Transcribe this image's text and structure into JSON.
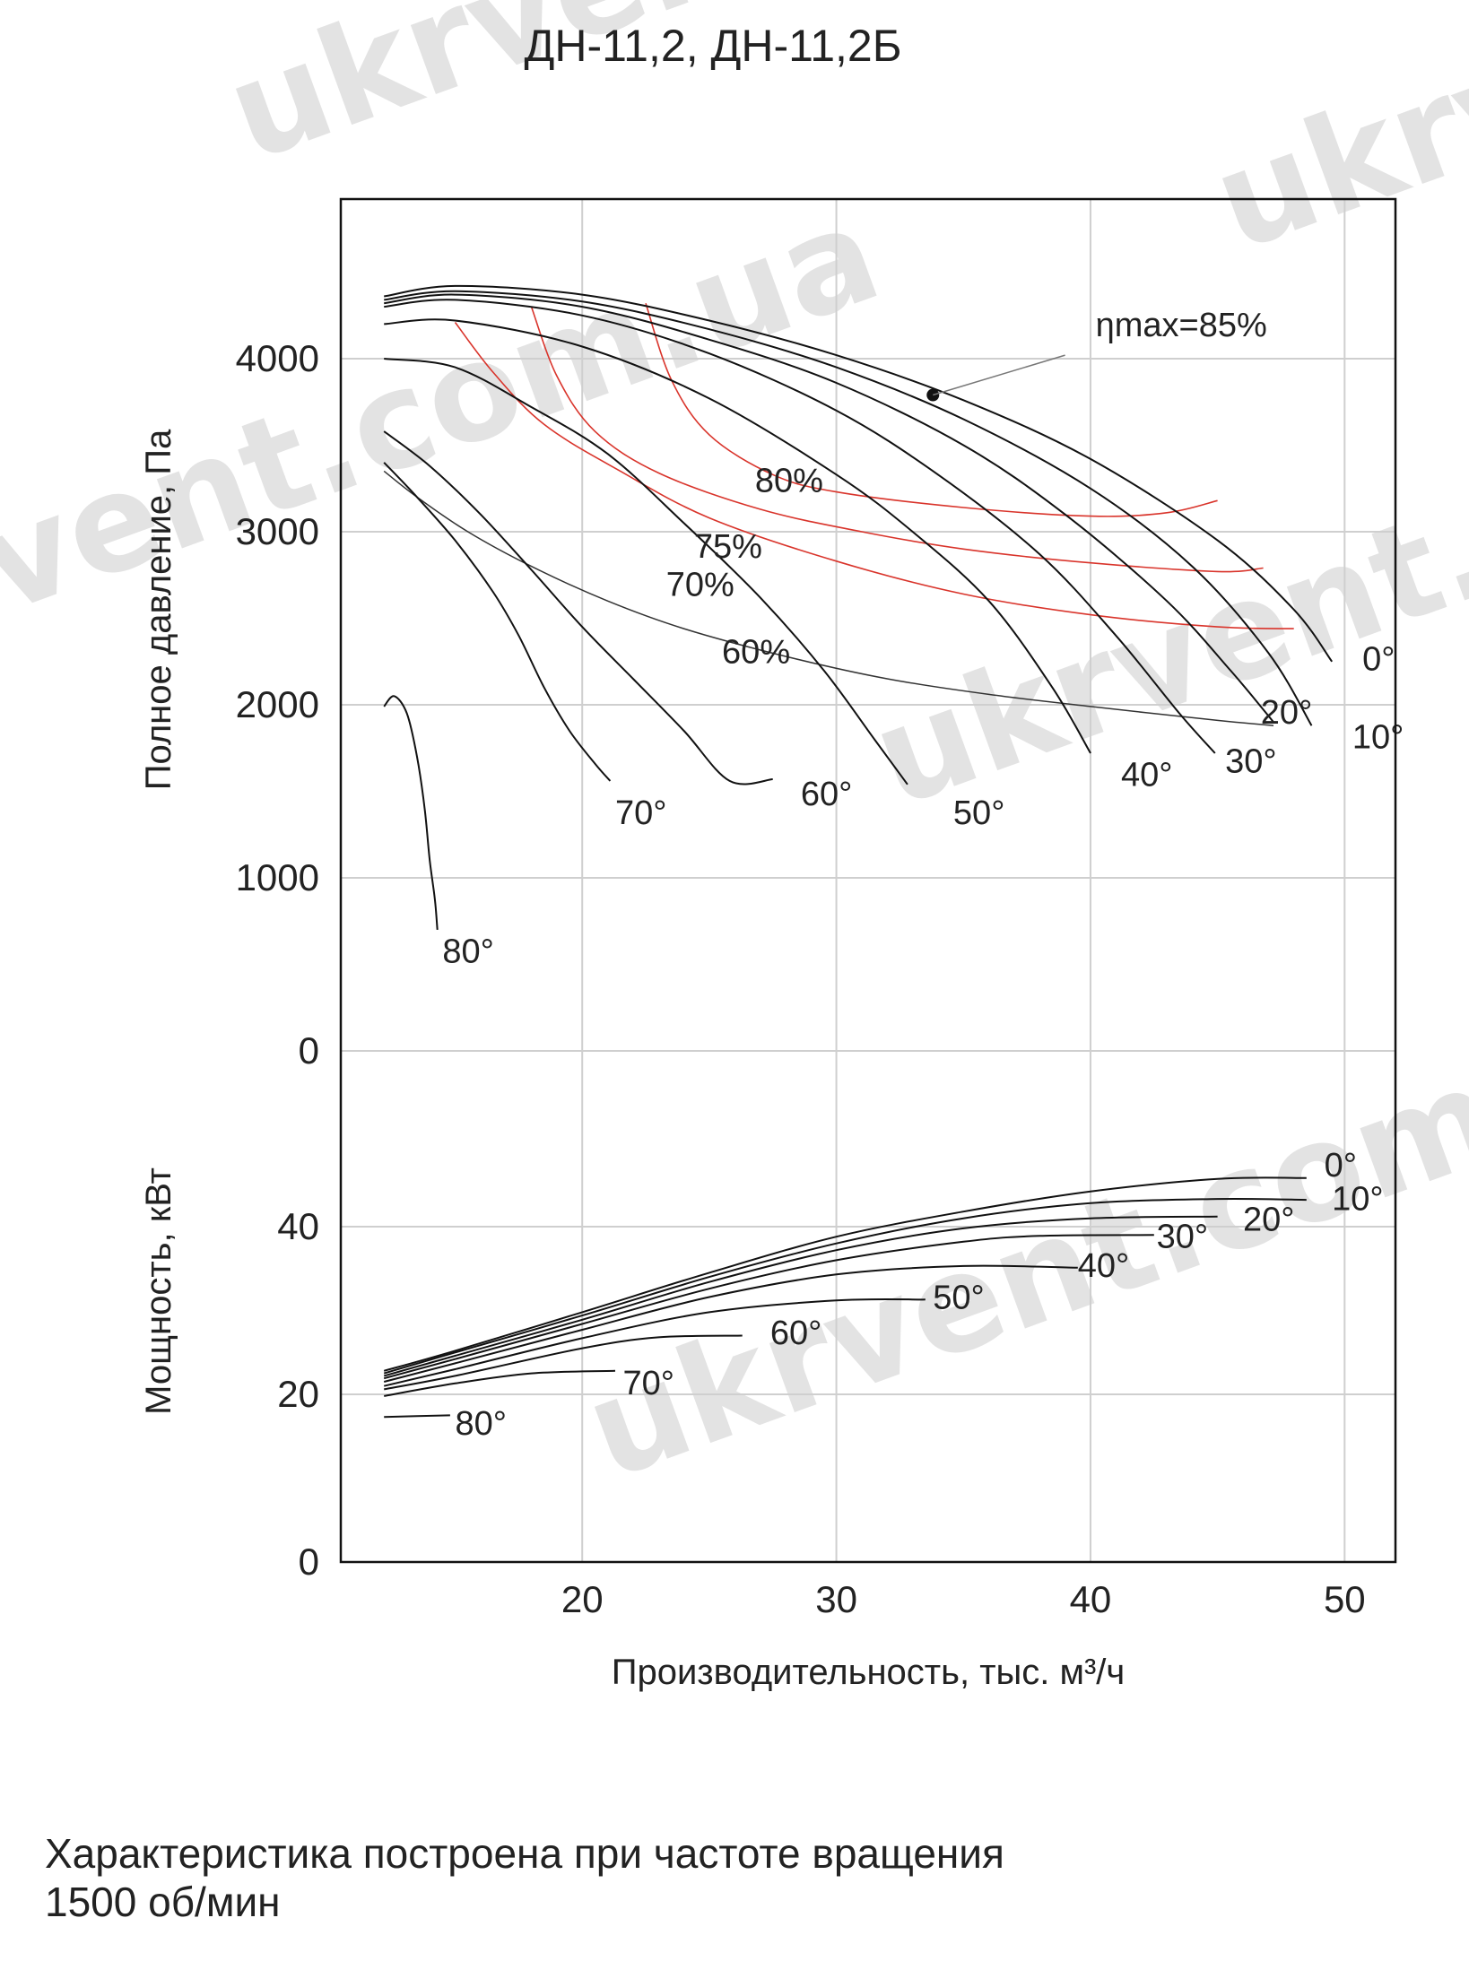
{
  "watermark": "ukrvent.com.ua",
  "footer": {
    "line1": "Характеристика построена при частоте вращения",
    "line2": "1500 об/мин"
  },
  "chart_data": {
    "type": "line",
    "title": "ДН-11,2, ДН-11,2Б",
    "xlabel": "Производительность, тыс. м³/ч",
    "xlim": [
      10.5,
      52
    ],
    "xticks": [
      20,
      30,
      40,
      50
    ],
    "grid": true,
    "pressure": {
      "ylabel": "Полное давление, Па",
      "ylim": [
        0,
        5000
      ],
      "yticks": [
        0,
        1000,
        2000,
        3000,
        4000
      ],
      "series": [
        {
          "name": "0°",
          "label_at": [
            50.7,
            2200
          ],
          "points": [
            [
              12.2,
              4360
            ],
            [
              15,
              4420
            ],
            [
              20,
              4370
            ],
            [
              25,
              4220
            ],
            [
              30,
              4020
            ],
            [
              35,
              3760
            ],
            [
              40,
              3420
            ],
            [
              45,
              2950
            ],
            [
              48,
              2550
            ],
            [
              49.5,
              2250
            ]
          ]
        },
        {
          "name": "10°",
          "label_at": [
            50.3,
            1750
          ],
          "points": [
            [
              12.2,
              4340
            ],
            [
              15,
              4390
            ],
            [
              20,
              4330
            ],
            [
              25,
              4170
            ],
            [
              30,
              3950
            ],
            [
              35,
              3650
            ],
            [
              40,
              3250
            ],
            [
              44,
              2800
            ],
            [
              47,
              2300
            ],
            [
              48.7,
              1880
            ]
          ]
        },
        {
          "name": "20°",
          "label_at": [
            46.7,
            1890
          ],
          "points": [
            [
              12.2,
              4320
            ],
            [
              15,
              4370
            ],
            [
              20,
              4300
            ],
            [
              25,
              4110
            ],
            [
              30,
              3860
            ],
            [
              35,
              3500
            ],
            [
              39,
              3100
            ],
            [
              43,
              2600
            ],
            [
              45.5,
              2200
            ],
            [
              47.2,
              1900
            ]
          ]
        },
        {
          "name": "30°",
          "label_at": [
            45.3,
            1610
          ],
          "points": [
            [
              12.2,
              4300
            ],
            [
              15,
              4340
            ],
            [
              20,
              4250
            ],
            [
              25,
              4030
            ],
            [
              30,
              3700
            ],
            [
              34,
              3330
            ],
            [
              38,
              2870
            ],
            [
              41,
              2400
            ],
            [
              43.5,
              1950
            ],
            [
              44.9,
              1720
            ]
          ]
        },
        {
          "name": "40°",
          "label_at": [
            41.2,
            1530
          ],
          "points": [
            [
              12.2,
              4200
            ],
            [
              15,
              4220
            ],
            [
              20,
              4070
            ],
            [
              25,
              3770
            ],
            [
              30,
              3330
            ],
            [
              33,
              3000
            ],
            [
              36,
              2600
            ],
            [
              38.5,
              2100
            ],
            [
              40,
              1720
            ]
          ]
        },
        {
          "name": "50°",
          "label_at": [
            34.6,
            1310
          ],
          "points": [
            [
              12.2,
              4000
            ],
            [
              15,
              3950
            ],
            [
              18,
              3720
            ],
            [
              21,
              3450
            ],
            [
              24,
              3050
            ],
            [
              27,
              2620
            ],
            [
              29.5,
              2200
            ],
            [
              31.5,
              1800
            ],
            [
              32.8,
              1540
            ]
          ]
        },
        {
          "name": "60°",
          "label_at": [
            28.6,
            1420
          ],
          "points": [
            [
              12.2,
              3580
            ],
            [
              14,
              3380
            ],
            [
              16,
              3100
            ],
            [
              18,
              2780
            ],
            [
              20,
              2450
            ],
            [
              22,
              2150
            ],
            [
              24,
              1850
            ],
            [
              25.8,
              1560
            ],
            [
              27.5,
              1570
            ]
          ]
        },
        {
          "name": "70°",
          "label_at": [
            21.3,
            1310
          ],
          "points": [
            [
              12.2,
              3400
            ],
            [
              13.5,
              3200
            ],
            [
              15,
              2950
            ],
            [
              16.5,
              2650
            ],
            [
              17.5,
              2400
            ],
            [
              18.5,
              2100
            ],
            [
              19.5,
              1850
            ],
            [
              20.5,
              1660
            ],
            [
              21.1,
              1560
            ]
          ]
        },
        {
          "name": "80°",
          "label_at": [
            14.5,
            510
          ],
          "points": [
            [
              12.2,
              1990
            ],
            [
              12.6,
              2050
            ],
            [
              13.1,
              1950
            ],
            [
              13.5,
              1700
            ],
            [
              13.8,
              1400
            ],
            [
              14.0,
              1100
            ],
            [
              14.2,
              880
            ],
            [
              14.3,
              700
            ]
          ]
        }
      ],
      "efficiency": [
        {
          "name": "ηmax=85%",
          "label_at": [
            40.2,
            4130
          ],
          "point": [
            33.8,
            3790
          ],
          "leader_to": [
            39,
            4020
          ]
        },
        {
          "name": "80%",
          "label_at": [
            26.8,
            3230
          ],
          "points": [
            [
              22.5,
              4320
            ],
            [
              23.5,
              3880
            ],
            [
              25,
              3560
            ],
            [
              27.5,
              3330
            ],
            [
              30,
              3230
            ],
            [
              35,
              3140
            ],
            [
              40,
              3090
            ],
            [
              43,
              3110
            ],
            [
              45,
              3180
            ]
          ]
        },
        {
          "name": "75%",
          "label_at": [
            24.4,
            2850
          ],
          "points": [
            [
              18,
              4300
            ],
            [
              19,
              3900
            ],
            [
              20.5,
              3580
            ],
            [
              23,
              3340
            ],
            [
              27,
              3130
            ],
            [
              31,
              3000
            ],
            [
              35,
              2900
            ],
            [
              40,
              2820
            ],
            [
              45,
              2770
            ],
            [
              46.8,
              2790
            ]
          ]
        },
        {
          "name": "70%",
          "label_at": [
            23.3,
            2630
          ],
          "points": [
            [
              15,
              4210
            ],
            [
              16.5,
              3920
            ],
            [
              18.5,
              3620
            ],
            [
              21.5,
              3350
            ],
            [
              25,
              3080
            ],
            [
              30,
              2830
            ],
            [
              35,
              2640
            ],
            [
              40,
              2520
            ],
            [
              45,
              2450
            ],
            [
              48,
              2440
            ]
          ]
        },
        {
          "name": "60%",
          "label_at": [
            25.5,
            2240
          ],
          "points": [
            [
              12.2,
              3350
            ],
            [
              13.5,
              3200
            ],
            [
              15.5,
              3000
            ],
            [
              18,
              2800
            ],
            [
              21,
              2600
            ],
            [
              24,
              2440
            ],
            [
              28,
              2280
            ],
            [
              32,
              2150
            ],
            [
              36,
              2060
            ],
            [
              40,
              1990
            ],
            [
              45,
              1910
            ],
            [
              47.2,
              1880
            ]
          ]
        }
      ]
    },
    "power": {
      "ylabel": "Мощность, кВт",
      "ylim": [
        0,
        48
      ],
      "yticks": [
        0,
        20,
        40
      ],
      "series": [
        {
          "name": "0°",
          "label_at": [
            49.2,
            46
          ],
          "points": [
            [
              12.2,
              22.8
            ],
            [
              15,
              25.2
            ],
            [
              20,
              29.8
            ],
            [
              25,
              34.5
            ],
            [
              30,
              38.8
            ],
            [
              35,
              41.8
            ],
            [
              40,
              44.2
            ],
            [
              45,
              45.7
            ],
            [
              48.5,
              45.8
            ]
          ]
        },
        {
          "name": "10°",
          "label_at": [
            49.5,
            42
          ],
          "points": [
            [
              12.2,
              22.5
            ],
            [
              15,
              25
            ],
            [
              20,
              29.4
            ],
            [
              25,
              34
            ],
            [
              30,
              38
            ],
            [
              35,
              41
            ],
            [
              40,
              42.8
            ],
            [
              45,
              43.3
            ],
            [
              48.5,
              43.2
            ]
          ]
        },
        {
          "name": "20°",
          "label_at": [
            46.0,
            39.5
          ],
          "points": [
            [
              12.2,
              22.2
            ],
            [
              15,
              24.6
            ],
            [
              20,
              28.9
            ],
            [
              25,
              33.4
            ],
            [
              30,
              37.2
            ],
            [
              35,
              39.8
            ],
            [
              40,
              41
            ],
            [
              45,
              41.2
            ]
          ]
        },
        {
          "name": "30°",
          "label_at": [
            42.6,
            37.5
          ],
          "points": [
            [
              12.2,
              21.9
            ],
            [
              15,
              24.2
            ],
            [
              20,
              28.4
            ],
            [
              25,
              32.6
            ],
            [
              30,
              36
            ],
            [
              35,
              38.2
            ],
            [
              38,
              38.9
            ],
            [
              42.5,
              39
            ]
          ]
        },
        {
          "name": "40°",
          "label_at": [
            39.5,
            34
          ],
          "points": [
            [
              12.2,
              21.5
            ],
            [
              15,
              23.7
            ],
            [
              20,
              27.7
            ],
            [
              25,
              31.6
            ],
            [
              30,
              34.3
            ],
            [
              35,
              35.3
            ],
            [
              39.5,
              35.1
            ]
          ]
        },
        {
          "name": "50°",
          "label_at": [
            33.8,
            30.2
          ],
          "points": [
            [
              12.2,
              21
            ],
            [
              15,
              23
            ],
            [
              20,
              26.7
            ],
            [
              25,
              29.8
            ],
            [
              30,
              31.2
            ],
            [
              33.5,
              31.3
            ]
          ]
        },
        {
          "name": "60°",
          "label_at": [
            27.4,
            26
          ],
          "points": [
            [
              12.2,
              20.6
            ],
            [
              15,
              22.2
            ],
            [
              20,
              25.5
            ],
            [
              23,
              26.8
            ],
            [
              26.3,
              27
            ]
          ]
        },
        {
          "name": "70°",
          "label_at": [
            21.6,
            20
          ],
          "points": [
            [
              12.2,
              19.8
            ],
            [
              15,
              21.3
            ],
            [
              18,
              22.5
            ],
            [
              21.3,
              22.8
            ]
          ]
        },
        {
          "name": "80°",
          "label_at": [
            15.0,
            15.2
          ],
          "points": [
            [
              12.2,
              17.3
            ],
            [
              14.8,
              17.5
            ]
          ]
        }
      ]
    }
  }
}
